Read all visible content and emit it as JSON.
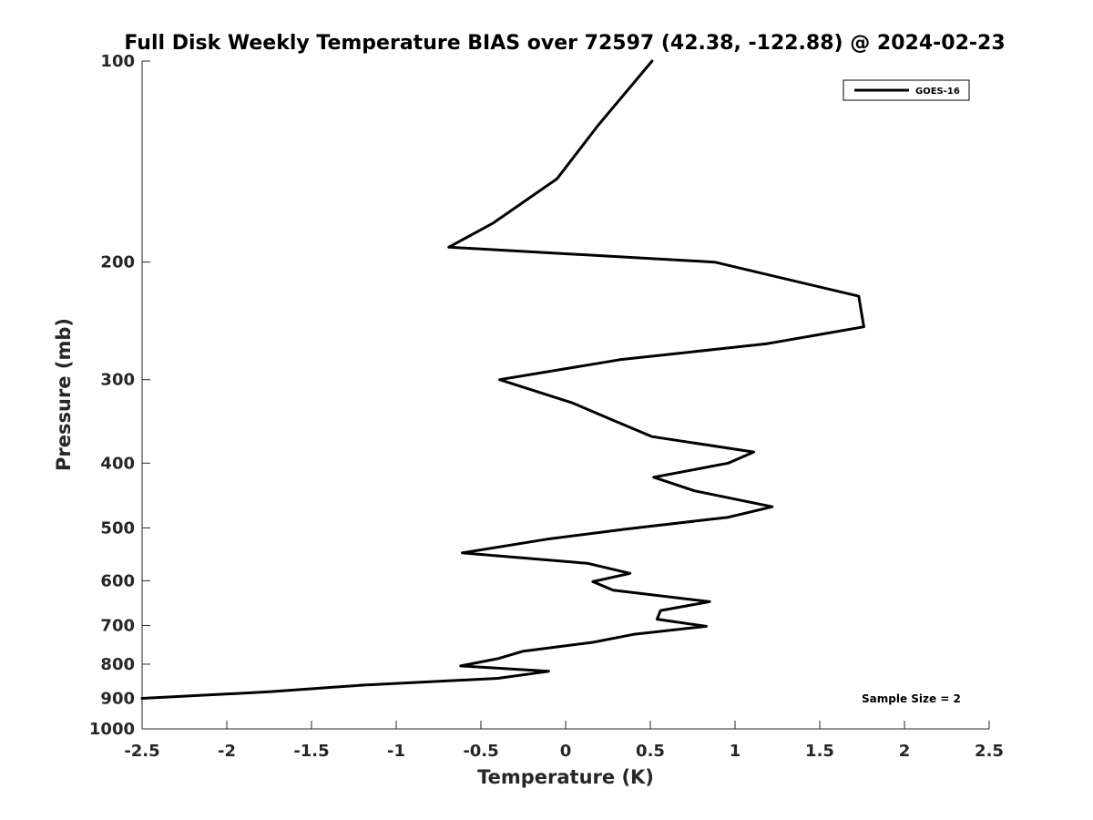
{
  "chart_data": {
    "type": "line",
    "title": "Full Disk Weekly Temperature BIAS over 72597 (42.38, -122.88) @ 2024-02-23",
    "xlabel": "Temperature (K)",
    "ylabel": "Pressure (mb)",
    "xlim": [
      -2.5,
      2.5
    ],
    "ylim": [
      1000,
      100
    ],
    "yscale": "log",
    "y_reversed": true,
    "grid": false,
    "legend_position": "top-right",
    "xticks": [
      -2.5,
      -2,
      -1.5,
      -1,
      -0.5,
      0,
      0.5,
      1,
      1.5,
      2,
      2.5
    ],
    "xtick_labels": [
      "-2.5",
      "-2",
      "-1.5",
      "-1",
      "-0.5",
      "0",
      "0.5",
      "1",
      "1.5",
      "2",
      "2.5"
    ],
    "yticks": [
      100,
      200,
      300,
      400,
      500,
      600,
      700,
      800,
      900,
      1000
    ],
    "ytick_labels": [
      "100",
      "200",
      "300",
      "400",
      "500",
      "600",
      "700",
      "800",
      "900",
      "1000"
    ],
    "series": [
      {
        "name": "GOES-16",
        "color": "#000000",
        "points": [
          {
            "x": 0.51,
            "p": 100
          },
          {
            "x": 0.19,
            "p": 125
          },
          {
            "x": -0.05,
            "p": 150
          },
          {
            "x": -0.43,
            "p": 175
          },
          {
            "x": -0.69,
            "p": 190
          },
          {
            "x": 0.88,
            "p": 200
          },
          {
            "x": 1.73,
            "p": 225
          },
          {
            "x": 1.76,
            "p": 250
          },
          {
            "x": 1.19,
            "p": 265
          },
          {
            "x": 0.32,
            "p": 280
          },
          {
            "x": -0.39,
            "p": 300
          },
          {
            "x": 0.04,
            "p": 325
          },
          {
            "x": 0.28,
            "p": 345
          },
          {
            "x": 0.51,
            "p": 365
          },
          {
            "x": 1.11,
            "p": 385
          },
          {
            "x": 0.96,
            "p": 400
          },
          {
            "x": 0.52,
            "p": 420
          },
          {
            "x": 0.76,
            "p": 440
          },
          {
            "x": 1.22,
            "p": 465
          },
          {
            "x": 0.96,
            "p": 482
          },
          {
            "x": 0.36,
            "p": 502
          },
          {
            "x": -0.11,
            "p": 520
          },
          {
            "x": -0.61,
            "p": 545
          },
          {
            "x": 0.13,
            "p": 565
          },
          {
            "x": 0.38,
            "p": 585
          },
          {
            "x": 0.16,
            "p": 602
          },
          {
            "x": 0.28,
            "p": 620
          },
          {
            "x": 0.85,
            "p": 645
          },
          {
            "x": 0.56,
            "p": 665
          },
          {
            "x": 0.54,
            "p": 685
          },
          {
            "x": 0.83,
            "p": 702
          },
          {
            "x": 0.4,
            "p": 722
          },
          {
            "x": 0.16,
            "p": 742
          },
          {
            "x": -0.25,
            "p": 765
          },
          {
            "x": -0.4,
            "p": 785
          },
          {
            "x": -0.62,
            "p": 805
          },
          {
            "x": -0.1,
            "p": 820
          },
          {
            "x": -0.4,
            "p": 840
          },
          {
            "x": -1.2,
            "p": 860
          },
          {
            "x": -1.75,
            "p": 880
          },
          {
            "x": -2.5,
            "p": 900
          }
        ]
      }
    ],
    "annotations": [
      "Sample Size = 2"
    ]
  }
}
